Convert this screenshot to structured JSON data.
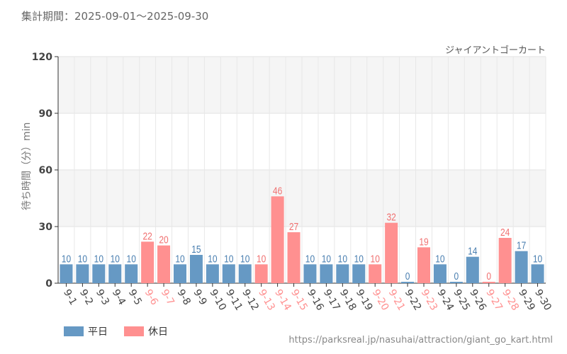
{
  "period_label": "集計期間：2025-09-01～2025-09-30",
  "attraction": "ジャイアントゴーカート",
  "url": "https://parksreal.jp/nasuhai/attraction/giant_go_kart.html",
  "colors": {
    "weekday": "#6699c4",
    "holiday": "#ff9090",
    "weekday_label": "#4a7fb0",
    "holiday_label": "#f07070"
  },
  "chart_data": {
    "type": "bar",
    "title": "",
    "ylabel": "待ち時間（分）min",
    "xlabel": "",
    "ylim": [
      0,
      120
    ],
    "yticks": [
      0,
      30,
      60,
      90,
      120
    ],
    "grid": true,
    "legend_position": "bottom-left",
    "categories": [
      "9-1",
      "9-2",
      "9-3",
      "9-4",
      "9-5",
      "9-6",
      "9-7",
      "9-8",
      "9-9",
      "9-10",
      "9-11",
      "9-12",
      "9-13",
      "9-14",
      "9-15",
      "9-16",
      "9-17",
      "9-18",
      "9-19",
      "9-20",
      "9-21",
      "9-22",
      "9-23",
      "9-24",
      "9-25",
      "9-26",
      "9-27",
      "9-28",
      "9-29",
      "9-30"
    ],
    "values": [
      10,
      10,
      10,
      10,
      10,
      22,
      20,
      10,
      15,
      10,
      10,
      10,
      10,
      46,
      27,
      10,
      10,
      10,
      10,
      10,
      32,
      0,
      19,
      10,
      0,
      14,
      0,
      24,
      17,
      10
    ],
    "day_type": [
      "平日",
      "平日",
      "平日",
      "平日",
      "平日",
      "休日",
      "休日",
      "平日",
      "平日",
      "平日",
      "平日",
      "平日",
      "休日",
      "休日",
      "休日",
      "平日",
      "平日",
      "平日",
      "平日",
      "休日",
      "休日",
      "平日",
      "休日",
      "平日",
      "平日",
      "平日",
      "休日",
      "休日",
      "平日",
      "平日"
    ],
    "legend": [
      "平日",
      "休日"
    ]
  }
}
